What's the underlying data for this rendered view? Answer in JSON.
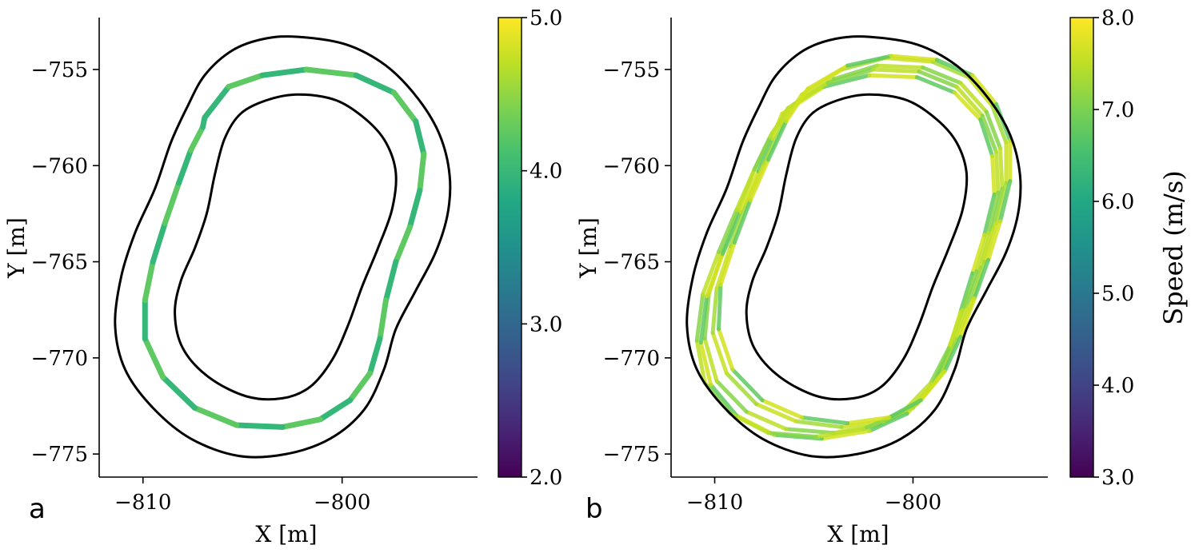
{
  "chart_data": [
    {
      "type": "line",
      "panel_label": "a",
      "xlabel": "X [m]",
      "ylabel": "Y [m]",
      "xlim": [
        -812.2,
        -793.2
      ],
      "ylim": [
        -776.2,
        -752.3
      ],
      "xticks": [
        -810,
        -800
      ],
      "xtick_labels": [
        "−810",
        "−800"
      ],
      "yticks": [
        -755,
        -760,
        -765,
        -770,
        -775
      ],
      "ytick_labels": [
        "−755",
        "−760",
        "−765",
        "−770",
        "−775"
      ],
      "grid": false,
      "track_boundary_outer": {
        "x": [
          -802.2,
          -799.8,
          -797.8,
          -796.2,
          -795.1,
          -794.6,
          -794.7,
          -795.3,
          -796.3,
          -797.3,
          -797.9,
          -798.9,
          -800.6,
          -802.8,
          -805.2,
          -807.6,
          -809.5,
          -810.9,
          -811.4,
          -811.1,
          -810.4,
          -809.4,
          -808.6,
          -807.8,
          -806.9,
          -805.5,
          -803.9,
          -802.2
        ],
        "y": [
          -753.3,
          -753.7,
          -754.8,
          -756.5,
          -758.4,
          -760.5,
          -762.5,
          -764.5,
          -766.5,
          -768.5,
          -770.6,
          -772.7,
          -774.2,
          -775.0,
          -775.1,
          -774.2,
          -772.6,
          -770.6,
          -768.3,
          -765.8,
          -763.5,
          -761.2,
          -758.8,
          -757.0,
          -755.3,
          -754.0,
          -753.4,
          -753.3
        ]
      },
      "track_boundary_inner": {
        "x": [
          -802.2,
          -800.3,
          -798.8,
          -797.8,
          -797.3,
          -797.5,
          -798.2,
          -799.0,
          -799.7,
          -800.5,
          -801.6,
          -803.0,
          -804.8,
          -806.7,
          -808.0,
          -808.4,
          -808.1,
          -807.4,
          -806.8,
          -806.4,
          -805.9,
          -805.1,
          -803.8,
          -802.2
        ],
        "y": [
          -756.3,
          -756.6,
          -757.6,
          -758.8,
          -760.4,
          -762.3,
          -764.3,
          -766.3,
          -768.3,
          -770.1,
          -771.5,
          -772.1,
          -772.0,
          -771.0,
          -769.5,
          -767.7,
          -766.0,
          -764.3,
          -762.5,
          -760.5,
          -758.6,
          -757.3,
          -756.6,
          -756.3
        ]
      },
      "trajectory": {
        "x": [
          -806.9,
          -805.7,
          -804.0,
          -801.8,
          -799.3,
          -797.4,
          -796.3,
          -795.9,
          -796.1,
          -796.6,
          -797.3,
          -797.8,
          -798.1,
          -798.6,
          -799.6,
          -801.1,
          -803.0,
          -805.3,
          -807.4,
          -809.0,
          -809.9,
          -809.9,
          -809.5,
          -808.9,
          -808.2,
          -807.6,
          -807.0,
          -806.9
        ],
        "y": [
          -757.5,
          -755.9,
          -755.3,
          -755.0,
          -755.3,
          -756.2,
          -757.7,
          -759.4,
          -761.3,
          -763.2,
          -765.0,
          -767.0,
          -769.0,
          -770.8,
          -772.2,
          -773.2,
          -773.6,
          -773.5,
          -772.6,
          -771.0,
          -769.0,
          -767.0,
          -765.0,
          -763.0,
          -760.9,
          -759.2,
          -758.0,
          -757.5
        ]
      },
      "colorbar": {
        "min": 2.0,
        "max": 5.0,
        "ticks": [
          2.0,
          3.0,
          4.0,
          5.0
        ],
        "tick_labels": [
          "2.0",
          "3.0",
          "4.0",
          "5.0"
        ],
        "colormap": "viridis",
        "label": ""
      }
    },
    {
      "type": "line",
      "panel_label": "b",
      "xlabel": "X [m]",
      "ylabel": "Y [m]",
      "xlim": [
        -812.2,
        -793.2
      ],
      "ylim": [
        -776.2,
        -752.3
      ],
      "xticks": [
        -810,
        -800
      ],
      "xtick_labels": [
        "−810",
        "−800"
      ],
      "yticks": [
        -755,
        -760,
        -765,
        -770,
        -775
      ],
      "ytick_labels": [
        "−755",
        "−760",
        "−765",
        "−770",
        "−775"
      ],
      "grid": false,
      "track_boundary_outer": {
        "x": [
          -802.2,
          -799.8,
          -797.8,
          -796.2,
          -795.1,
          -794.6,
          -794.7,
          -795.3,
          -796.3,
          -797.3,
          -797.9,
          -798.9,
          -800.6,
          -802.8,
          -805.2,
          -807.6,
          -809.5,
          -810.9,
          -811.4,
          -811.1,
          -810.4,
          -809.4,
          -808.6,
          -807.8,
          -806.9,
          -805.5,
          -803.9,
          -802.2
        ],
        "y": [
          -753.3,
          -753.7,
          -754.8,
          -756.5,
          -758.4,
          -760.5,
          -762.5,
          -764.5,
          -766.5,
          -768.5,
          -770.6,
          -772.7,
          -774.2,
          -775.0,
          -775.1,
          -774.2,
          -772.6,
          -770.6,
          -768.3,
          -765.8,
          -763.5,
          -761.2,
          -758.8,
          -757.0,
          -755.3,
          -754.0,
          -753.4,
          -753.3
        ]
      },
      "track_boundary_inner": {
        "x": [
          -802.2,
          -800.3,
          -798.8,
          -797.8,
          -797.3,
          -797.5,
          -798.2,
          -799.0,
          -799.7,
          -800.5,
          -801.6,
          -803.0,
          -804.8,
          -806.7,
          -808.0,
          -808.4,
          -808.1,
          -807.4,
          -806.8,
          -806.4,
          -805.9,
          -805.1,
          -803.8,
          -802.2
        ],
        "y": [
          -756.3,
          -756.6,
          -757.6,
          -758.8,
          -760.4,
          -762.3,
          -764.3,
          -766.3,
          -768.3,
          -770.1,
          -771.5,
          -772.1,
          -772.0,
          -771.0,
          -769.5,
          -767.7,
          -766.0,
          -764.3,
          -762.5,
          -760.5,
          -758.6,
          -757.3,
          -756.6,
          -756.3
        ]
      },
      "trajectory_laps": [
        {
          "x": [
            -806.0,
            -804.0,
            -801.8,
            -799.5,
            -797.6,
            -796.3,
            -795.6,
            -795.5,
            -796.0,
            -796.6,
            -797.3,
            -798.0,
            -798.8,
            -800.0,
            -801.8,
            -804.0,
            -806.4,
            -808.4,
            -809.9,
            -810.5,
            -810.3,
            -809.6,
            -808.8,
            -808.0,
            -807.1,
            -806.0
          ],
          "y": [
            -756.8,
            -755.5,
            -754.8,
            -754.9,
            -755.7,
            -757.2,
            -759.1,
            -761.2,
            -763.3,
            -765.3,
            -767.3,
            -769.3,
            -771.1,
            -772.6,
            -773.5,
            -773.9,
            -773.7,
            -772.8,
            -771.2,
            -769.0,
            -766.7,
            -764.5,
            -762.3,
            -760.2,
            -758.3,
            -756.8
          ]
        },
        {
          "x": [
            -806.6,
            -804.5,
            -802.2,
            -799.8,
            -797.9,
            -796.6,
            -796.0,
            -795.9,
            -796.4,
            -797.0,
            -797.6,
            -798.2,
            -799.0,
            -800.3,
            -802.2,
            -804.6,
            -807.0,
            -808.9,
            -810.2,
            -810.7,
            -810.4,
            -809.6,
            -808.7,
            -807.8,
            -807.1,
            -806.6
          ],
          "y": [
            -757.3,
            -755.9,
            -755.3,
            -755.4,
            -756.2,
            -757.6,
            -759.5,
            -761.5,
            -763.6,
            -765.6,
            -767.6,
            -769.6,
            -771.4,
            -772.9,
            -773.8,
            -774.2,
            -774.0,
            -773.0,
            -771.4,
            -769.2,
            -766.8,
            -764.6,
            -762.4,
            -760.3,
            -758.6,
            -757.3
          ]
        },
        {
          "x": [
            -805.6,
            -803.6,
            -801.4,
            -799.0,
            -797.2,
            -796.0,
            -795.3,
            -795.3,
            -795.8,
            -796.4,
            -797.0,
            -797.8,
            -798.6,
            -799.8,
            -801.5,
            -803.6,
            -805.9,
            -807.9,
            -809.4,
            -810.1,
            -809.9,
            -809.2,
            -808.4,
            -807.5,
            -806.6,
            -805.6
          ],
          "y": [
            -756.3,
            -755.0,
            -754.4,
            -754.6,
            -755.4,
            -756.9,
            -758.8,
            -760.9,
            -763.0,
            -765.0,
            -767.0,
            -769.0,
            -770.9,
            -772.4,
            -773.3,
            -773.6,
            -773.3,
            -772.4,
            -770.8,
            -768.7,
            -766.4,
            -764.2,
            -762.0,
            -759.9,
            -757.9,
            -756.3
          ]
        },
        {
          "x": [
            -806.3,
            -804.3,
            -802.0,
            -799.7,
            -797.8,
            -796.5,
            -795.8,
            -795.7,
            -796.2,
            -796.8,
            -797.5,
            -798.2,
            -799.1,
            -800.5,
            -802.5,
            -804.9,
            -807.3,
            -809.2,
            -810.5,
            -810.9,
            -810.6,
            -809.8,
            -808.9,
            -808.0,
            -807.2,
            -806.3
          ],
          "y": [
            -757.0,
            -755.7,
            -755.0,
            -755.1,
            -755.9,
            -757.4,
            -759.3,
            -761.4,
            -763.5,
            -765.5,
            -767.5,
            -769.5,
            -771.3,
            -772.8,
            -773.7,
            -774.1,
            -773.9,
            -772.9,
            -771.3,
            -769.1,
            -766.7,
            -764.5,
            -762.3,
            -760.2,
            -758.5,
            -757.0
          ]
        },
        {
          "x": [
            -805.3,
            -803.3,
            -801.1,
            -798.8,
            -797.0,
            -795.8,
            -795.1,
            -795.1,
            -795.6,
            -796.2,
            -796.9,
            -797.6,
            -798.4,
            -799.6,
            -801.2,
            -803.3,
            -805.6,
            -807.6,
            -809.1,
            -809.8,
            -809.7,
            -809.0,
            -808.2,
            -807.3,
            -806.4,
            -805.3
          ],
          "y": [
            -756.0,
            -754.8,
            -754.3,
            -754.5,
            -755.3,
            -756.8,
            -758.7,
            -760.8,
            -762.9,
            -764.9,
            -766.9,
            -768.9,
            -770.7,
            -772.2,
            -773.1,
            -773.4,
            -773.1,
            -772.2,
            -770.6,
            -768.5,
            -766.2,
            -764.0,
            -761.8,
            -759.7,
            -757.7,
            -756.0
          ]
        }
      ],
      "colorbar": {
        "min": 3.0,
        "max": 8.0,
        "ticks": [
          3.0,
          4.0,
          5.0,
          6.0,
          7.0,
          8.0
        ],
        "tick_labels": [
          "3.0",
          "4.0",
          "5.0",
          "6.0",
          "7.0",
          "8.0"
        ],
        "colormap": "viridis",
        "label": "Speed (m/s)"
      }
    }
  ],
  "colors": {
    "boundary": "#000000",
    "axes": "#000000",
    "viridis": [
      "#440154",
      "#482475",
      "#414487",
      "#355f8d",
      "#2a788e",
      "#21918c",
      "#22a884",
      "#44bf70",
      "#7ad151",
      "#bddf26",
      "#fde725"
    ],
    "trajectory_a": [
      "#35b779",
      "#3fbc73",
      "#2ea980",
      "#5ec962",
      "#27a082",
      "#44bf70"
    ],
    "trajectory_b": [
      "#bddf26",
      "#a2da37",
      "#d2e21b",
      "#86d549",
      "#c8e020",
      "#5ec962"
    ]
  }
}
